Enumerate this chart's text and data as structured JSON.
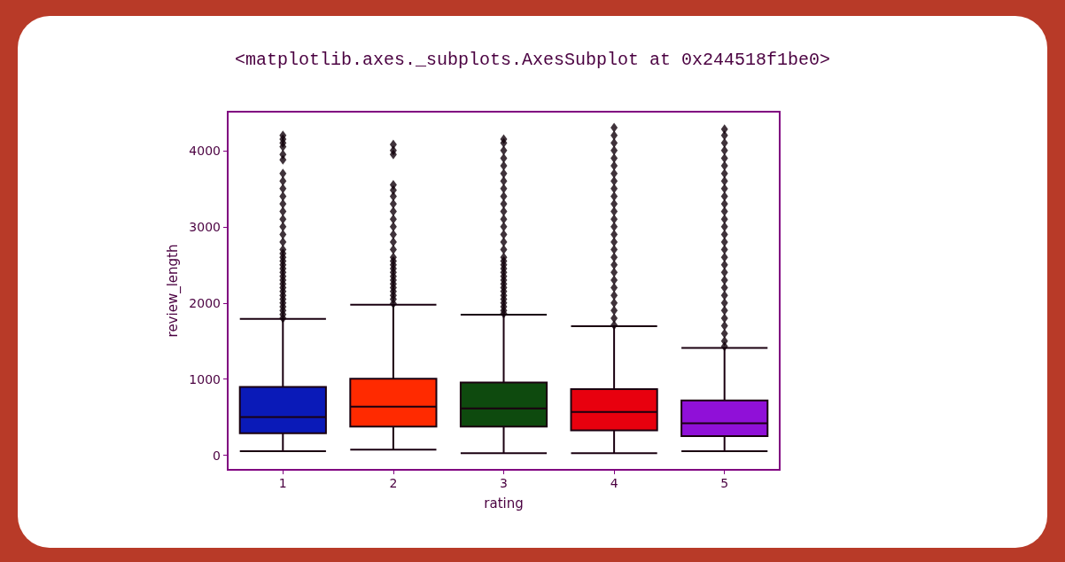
{
  "chart_data": {
    "type": "box",
    "title": "<matplotlib.axes._subplots.AxesSubplot at 0x244518f1be0>",
    "xlabel": "rating",
    "ylabel": "review_length",
    "categories": [
      "1",
      "2",
      "3",
      "4",
      "5"
    ],
    "colors": [
      "#0a1ab8",
      "#ff2a00",
      "#0e4a0e",
      "#e8000e",
      "#9010d8"
    ],
    "boxes": [
      {
        "low": 55,
        "q1": 290,
        "median": 503,
        "q3": 899,
        "high": 1790,
        "outliers": [
          1800,
          1850,
          1900,
          1950,
          2000,
          2050,
          2100,
          2150,
          2200,
          2250,
          2300,
          2350,
          2400,
          2450,
          2500,
          2550,
          2600,
          2650,
          2700,
          2800,
          2900,
          3000,
          3100,
          3200,
          3300,
          3400,
          3500,
          3600,
          3700,
          3880,
          3950,
          4050,
          4100,
          4150,
          4200
        ]
      },
      {
        "low": 74,
        "q1": 376,
        "median": 640,
        "q3": 1004,
        "high": 1977,
        "outliers": [
          1990,
          2050,
          2100,
          2150,
          2200,
          2250,
          2300,
          2350,
          2400,
          2450,
          2500,
          2550,
          2600,
          2700,
          2800,
          2900,
          3000,
          3100,
          3200,
          3300,
          3400,
          3480,
          3550,
          3950,
          4000,
          4080
        ]
      },
      {
        "low": 27,
        "q1": 376,
        "median": 616,
        "q3": 957,
        "high": 1845,
        "outliers": [
          1860,
          1900,
          1950,
          2000,
          2050,
          2100,
          2150,
          2200,
          2250,
          2300,
          2350,
          2400,
          2450,
          2500,
          2550,
          2600,
          2700,
          2800,
          2900,
          3000,
          3100,
          3200,
          3300,
          3400,
          3500,
          3600,
          3700,
          3800,
          3900,
          4000,
          4100,
          4150
        ]
      },
      {
        "low": 27,
        "q1": 329,
        "median": 570,
        "q3": 868,
        "high": 1694,
        "outliers": [
          1710,
          1800,
          1900,
          2000,
          2100,
          2200,
          2300,
          2400,
          2500,
          2600,
          2700,
          2800,
          2900,
          3000,
          3100,
          3200,
          3300,
          3400,
          3500,
          3600,
          3700,
          3800,
          3900,
          4000,
          4100,
          4200,
          4300
        ]
      },
      {
        "low": 55,
        "q1": 252,
        "median": 422,
        "q3": 721,
        "high": 1411,
        "outliers": [
          1430,
          1500,
          1600,
          1700,
          1800,
          1900,
          2000,
          2100,
          2200,
          2300,
          2400,
          2500,
          2600,
          2700,
          2800,
          2900,
          3000,
          3100,
          3200,
          3300,
          3400,
          3500,
          3600,
          3700,
          3800,
          3900,
          4000,
          4100,
          4200,
          4280
        ]
      }
    ],
    "ylim": [
      -190,
      4510
    ],
    "yticks": [
      0,
      1000,
      2000,
      3000,
      4000
    ],
    "marker": "diamond"
  }
}
